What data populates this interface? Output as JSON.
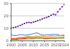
{
  "chart_data": {
    "type": "line",
    "x": [
      2000,
      2001,
      2002,
      2003,
      2004,
      2005,
      2006,
      2007,
      2008,
      2009,
      2010,
      2011,
      2012,
      2013,
      2014,
      2015,
      2016,
      2017,
      2018,
      2019,
      2020,
      2021,
      2022,
      2023,
      2024
    ],
    "series": [
      {
        "color": "#7030a0",
        "line_style": "dotted",
        "marker": "square",
        "values": [
          10.25,
          10.58,
          10.94,
          11.51,
          12.27,
          13.04,
          13.86,
          14.48,
          14.72,
          14.42,
          14.96,
          15.52,
          16.16,
          16.78,
          17.52,
          18.22,
          18.71,
          19.48,
          20.53,
          21.38,
          20.89,
          23.32,
          25.46,
          27.36,
          29.17
        ]
      },
      {
        "color": "#4472c4",
        "line_style": "solid",
        "values": [
          4.89,
          4.31,
          4.11,
          4.44,
          4.81,
          4.75,
          4.53,
          4.52,
          5.04,
          5.23,
          5.7,
          6.16,
          6.2,
          5.16,
          4.85,
          4.39,
          5.0,
          4.87,
          4.95,
          5.08,
          5.06,
          4.94,
          4.23,
          4.21,
          4.11
        ]
      },
      {
        "color": "#ed7d31",
        "line_style": "solid",
        "values": [
          1.95,
          1.95,
          2.08,
          2.51,
          2.81,
          2.86,
          2.99,
          3.44,
          3.75,
          3.42,
          3.42,
          3.77,
          3.54,
          3.75,
          3.9,
          3.37,
          3.48,
          3.69,
          4.0,
          3.89,
          3.89,
          4.26,
          4.08,
          4.45,
          4.59
        ]
      },
      {
        "color": "#ffc000",
        "line_style": "solid",
        "values": [
          1.66,
          1.64,
          1.76,
          1.88,
          2.21,
          2.42,
          2.67,
          3.09,
          2.93,
          2.41,
          2.48,
          2.64,
          2.66,
          2.74,
          3.02,
          2.92,
          2.69,
          2.64,
          2.86,
          2.83,
          2.7,
          3.13,
          3.08,
          3.09,
          3.35
        ]
      },
      {
        "color": "#a9d18e",
        "line_style": "solid",
        "values": [
          1.37,
          1.4,
          1.5,
          1.84,
          2.13,
          2.2,
          2.32,
          2.66,
          2.93,
          2.7,
          2.65,
          2.86,
          2.69,
          2.81,
          2.85,
          2.44,
          2.47,
          2.6,
          2.78,
          2.72,
          2.64,
          2.96,
          2.78,
          3.03,
          3.13
        ]
      },
      {
        "color": "#ff0000",
        "line_style": "solid",
        "values": [
          1.14,
          1.17,
          1.27,
          1.58,
          1.8,
          1.85,
          1.94,
          2.21,
          2.39,
          2.19,
          2.13,
          2.29,
          2.08,
          2.14,
          2.15,
          1.83,
          1.86,
          1.95,
          2.09,
          2.0,
          1.9,
          2.1,
          2.05,
          2.19,
          2.28
        ]
      },
      {
        "color": "#70ad47",
        "line_style": "solid",
        "values": [
          0.74,
          0.74,
          0.77,
          0.89,
          1.02,
          1.17,
          1.32,
          1.47,
          1.55,
          1.38,
          1.61,
          1.79,
          1.83,
          1.84,
          1.8,
          1.56,
          1.53,
          1.65,
          1.73,
          1.74,
          1.65,
          1.99,
          2.14,
          2.14,
          2.24
        ]
      }
    ],
    "xlim": [
      2000,
      2024
    ],
    "ylim": [
      0,
      30
    ],
    "xticks": [
      2000,
      2005,
      2010,
      2015,
      2020,
      2024
    ],
    "yticks": [
      0,
      10,
      20,
      30
    ],
    "grid": "y"
  }
}
